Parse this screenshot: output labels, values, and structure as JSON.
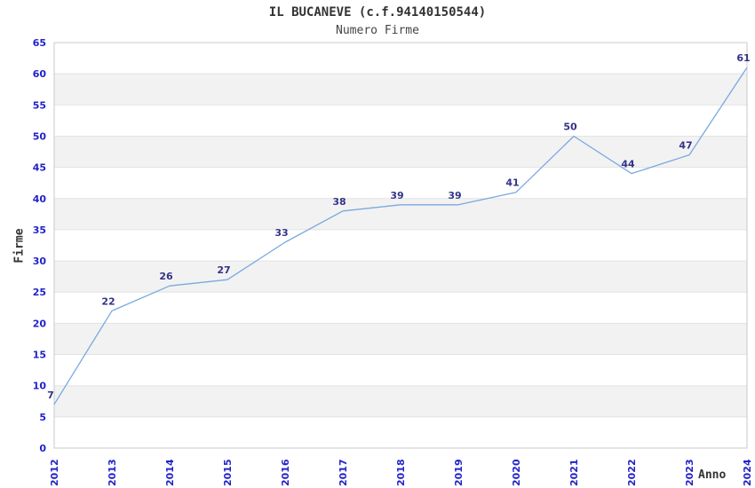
{
  "header": {
    "title": "IL BUCANEVE (c.f.94140150544)",
    "subtitle": "Numero Firme"
  },
  "axes": {
    "y_title": "Firme",
    "x_title": "Anno"
  },
  "chart_data": {
    "type": "line",
    "title": "IL BUCANEVE (c.f.94140150544)",
    "subtitle": "Numero Firme",
    "xlabel": "Anno",
    "ylabel": "Firme",
    "categories": [
      "2012",
      "2013",
      "2014",
      "2015",
      "2016",
      "2017",
      "2018",
      "2019",
      "2020",
      "2021",
      "2022",
      "2023",
      "2024"
    ],
    "values": [
      7,
      22,
      26,
      27,
      33,
      38,
      39,
      39,
      41,
      50,
      44,
      47,
      61
    ],
    "ylim": [
      0,
      65
    ],
    "ytick_step": 5,
    "legend": "none",
    "grid": "horizontal",
    "alternating_bands": true,
    "markers": "none",
    "colors": {
      "line": "#79A9E0",
      "tick_label": "#2222CC",
      "point_label": "#333388",
      "band": "#F2F2F2",
      "gridline": "#E3E3E3",
      "plot_border": "#C9C9C9",
      "title_text": "#333333",
      "background": "#FFFFFF"
    }
  }
}
